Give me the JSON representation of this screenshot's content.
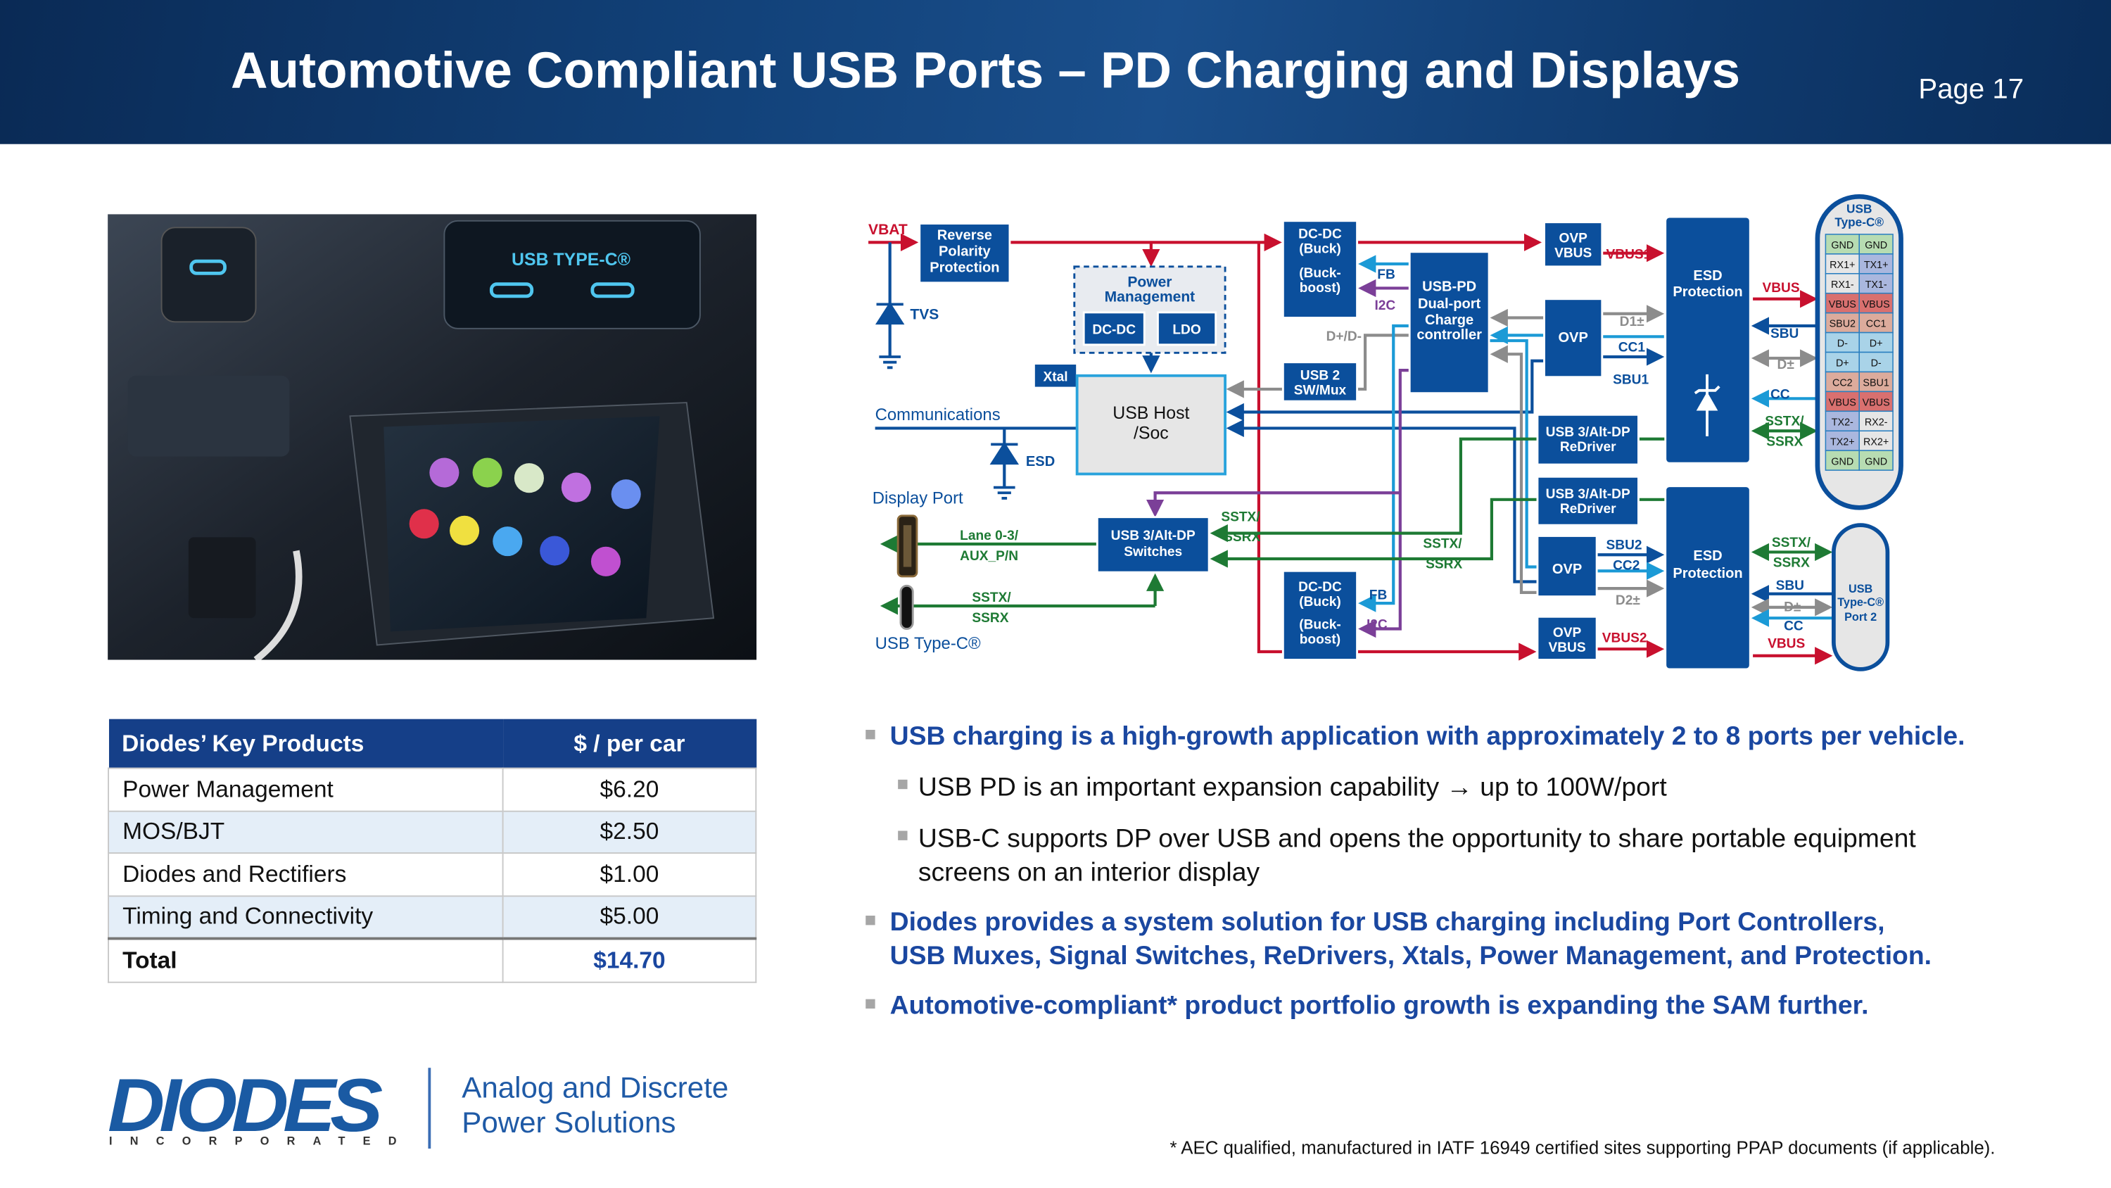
{
  "header": {
    "title": "Automotive Compliant USB Ports – PD Charging and Displays",
    "page": "Page 17"
  },
  "photo": {
    "label": "USB TYPE-C®"
  },
  "table": {
    "headers": [
      "Diodes’ Key Products",
      "$ / per car"
    ],
    "rows": [
      [
        "Power Management",
        "$6.20"
      ],
      [
        "MOS/BJT",
        "$2.50"
      ],
      [
        "Diodes and Rectifiers",
        "$1.00"
      ],
      [
        "Timing and Connectivity",
        "$5.00"
      ]
    ],
    "total": [
      "Total",
      "$14.70"
    ]
  },
  "bullets": [
    {
      "text": "USB charging is a high-growth application with approximately 2 to 8 ports per vehicle."
    },
    {
      "text": "USB PD is an important expansion capability → up to 100W/port"
    },
    {
      "line1": "USB-C supports DP over USB and opens the opportunity to share portable equipment",
      "line2": "screens on an interior display"
    },
    {
      "line1": "Diodes provides a system solution for USB charging including Port Controllers,",
      "line2": "USB Muxes, Signal Switches, ReDrivers, Xtals, Power Management, and Protection."
    },
    {
      "text": "Automotive-compliant* product portfolio growth is expanding the SAM further."
    }
  ],
  "footnote": "* AEC qualified, manufactured in IATF 16949 certified sites supporting PPAP documents (if applicable).",
  "logo": {
    "name": "DIODES",
    "sub": "INCORPORATED",
    "tagline1": "Analog and Discrete",
    "tagline2": "Power Solutions"
  },
  "colors": {
    "box": "#0b4f9c",
    "power": "#c8102e",
    "superspeed": "#1e7a34",
    "cc": "#1b9ad6",
    "i2c": "#7b3f98",
    "usb2": "#8c8c8c",
    "sbu": "#0b4f9c"
  },
  "diagram": {
    "boxes": {
      "rpp": [
        "Reverse",
        "Polarity",
        "Protection"
      ],
      "dcdc1": [
        "DC-DC",
        "(Buck)",
        "(Buck-",
        "boost)"
      ],
      "pm": [
        "Power",
        "Management"
      ],
      "pm_dcdc": "DC-DC",
      "pm_ldo": "LDO",
      "xtal": "Xtal",
      "host": [
        "USB Host",
        "/Soc"
      ],
      "usb2": [
        "USB 2",
        "SW/Mux"
      ],
      "usbpd": [
        "USB-PD",
        "Dual-port",
        "Charge",
        "controller"
      ],
      "ovpv1": [
        "OVP",
        "VBUS"
      ],
      "ovp1": "OVP",
      "esd1": [
        "ESD",
        "Protection"
      ],
      "rd1": [
        "USB 3/Alt-DP",
        "ReDriver"
      ],
      "rd2": [
        "USB 3/Alt-DP",
        "ReDriver"
      ],
      "ovp2": "OVP",
      "ovpv2": [
        "OVP",
        "VBUS"
      ],
      "esd2": [
        "ESD",
        "Protection"
      ],
      "dcdc2": [
        "DC-DC",
        "(Buck)",
        "(Buck-",
        "boost)"
      ],
      "sw": [
        "USB 3/Alt-DP",
        "Switches"
      ],
      "conn1": [
        "USB",
        "Type-C®"
      ],
      "conn2": [
        "USB",
        "Type-C®",
        "Port 2"
      ]
    },
    "labels": {
      "vbat": "VBAT",
      "tvs": "TVS",
      "comm": "Communications",
      "esd": "ESD",
      "dp": "Display Port",
      "lane": "Lane 0-3/",
      "aux": "AUX_P/N",
      "sstx_a": "SSTX/",
      "ssrx_a": "SSRX",
      "usbc": "USB Type-C®",
      "fb1": "FB",
      "i2c1": "I2C",
      "dpdm": "D+/D-",
      "sstx_b": "SSTX/",
      "ssrx_b": "SSRX",
      "sstx_c": "SSTX/",
      "ssrx_c": "SSRX",
      "fb2": "FB",
      "i2c2": "I2C",
      "vbus1": "VBUS1",
      "d1": "D1±",
      "cc1": "CC1",
      "sbu1": "SBU1",
      "vbus_r": "VBUS",
      "sbu_r": "SBU",
      "dpm_r": "D±",
      "cc_r": "CC",
      "sstx_r": "SSTX/",
      "ssrx_r": "SSRX",
      "sbu2": "SBU2",
      "cc2": "CC2",
      "d2": "D2±",
      "vbus2": "VBUS2",
      "sstx_p2": "SSTX/",
      "ssrx_p2": "SSRX",
      "sbu_p2": "SBU",
      "dpm_p2": "D±",
      "cc_p2": "CC",
      "vbus_p2": "VBUS"
    },
    "pins": [
      [
        "GND",
        "GND"
      ],
      [
        "RX1+",
        "TX1+"
      ],
      [
        "RX1-",
        "TX1-"
      ],
      [
        "VBUS",
        "VBUS"
      ],
      [
        "SBU2",
        "CC1"
      ],
      [
        "D-",
        "D+"
      ],
      [
        "D+",
        "D-"
      ],
      [
        "CC2",
        "SBU1"
      ],
      [
        "VBUS",
        "VBUS"
      ],
      [
        "TX2-",
        "RX2-"
      ],
      [
        "TX2+",
        "RX2+"
      ],
      [
        "GND",
        "GND"
      ]
    ],
    "pin_colors": {
      "GND": "#b7dcb2",
      "RX": "#e6e6e6",
      "TX": "#aab7de",
      "VBUS": "#d9706f",
      "SBU": "#dcab9c",
      "CC": "#dcab9c",
      "D": "#a9d3e8"
    }
  }
}
